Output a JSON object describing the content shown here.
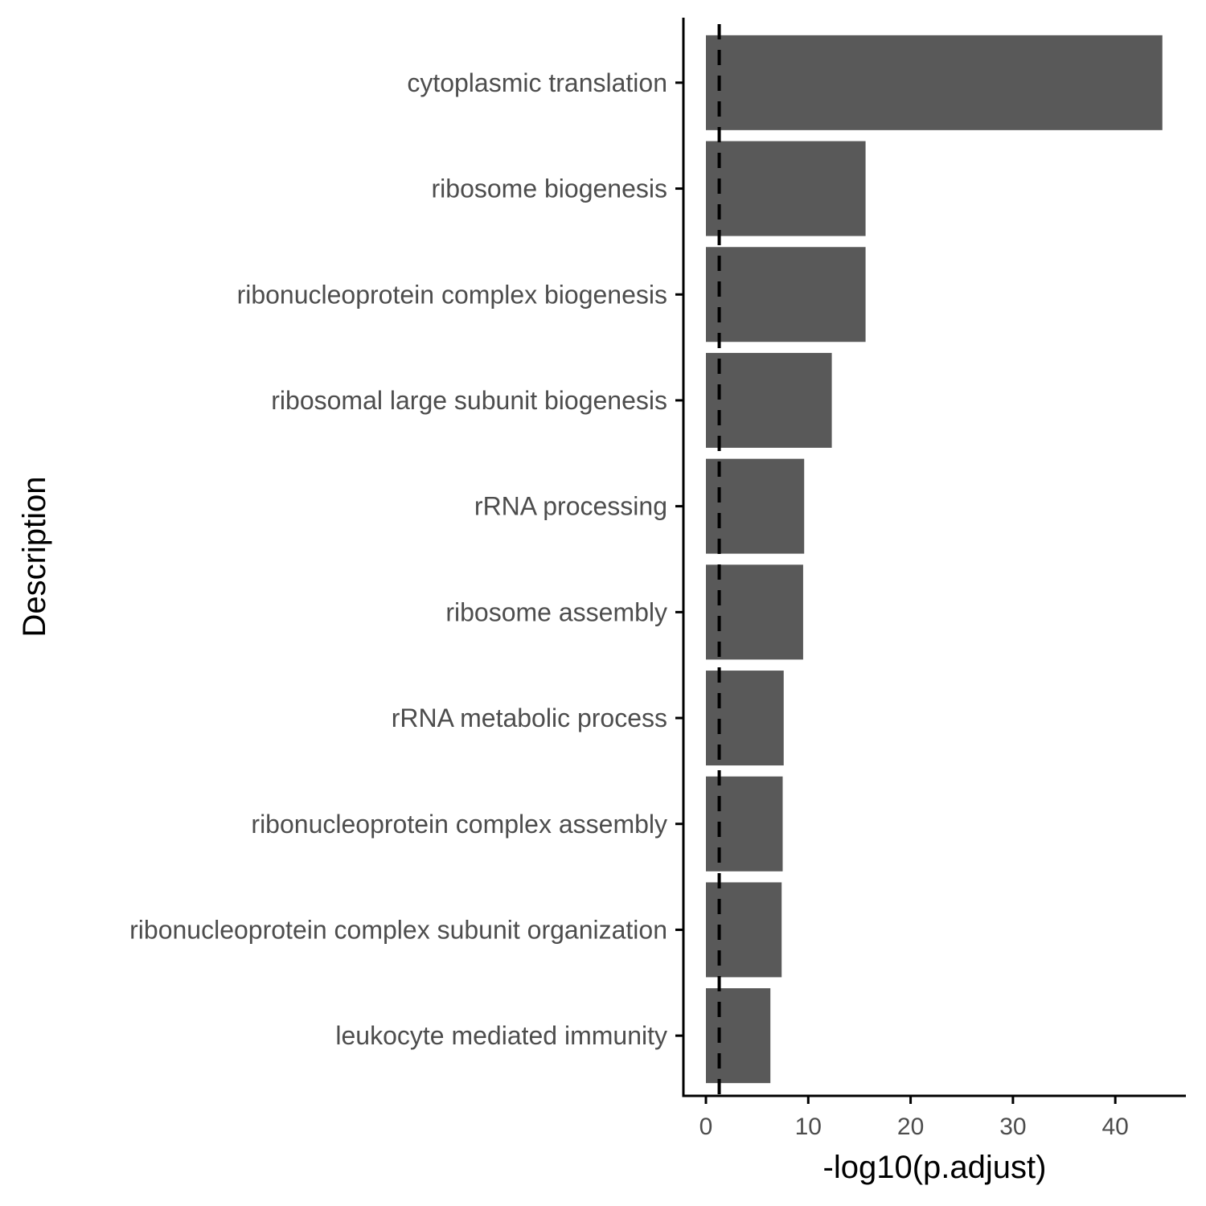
{
  "chart_data": {
    "type": "bar",
    "orientation": "horizontal",
    "xlabel": "-log10(p.adjust)",
    "ylabel": "Description",
    "xlim": [
      -2.2,
      46.9
    ],
    "x_ticks": [
      0,
      10,
      20,
      30,
      40
    ],
    "x_tick_labels": [
      "0",
      "10",
      "20",
      "30",
      "40"
    ],
    "categories": [
      "cytoplasmic translation",
      "ribosome biogenesis",
      "ribonucleoprotein complex biogenesis",
      "ribosomal large subunit biogenesis",
      "rRNA processing",
      "ribosome assembly",
      "rRNA metabolic process",
      "ribonucleoprotein complex assembly",
      "ribonucleoprotein complex subunit organization",
      "leukocyte mediated immunity"
    ],
    "values": [
      44.6,
      15.6,
      15.6,
      12.3,
      9.6,
      9.5,
      7.6,
      7.5,
      7.4,
      6.3
    ],
    "reference_line": {
      "x": 1.3,
      "style": "dashed"
    },
    "grid": false,
    "legend": "none",
    "colors": {
      "bar": "#595959",
      "axis": "#000000",
      "tick_label": "#4d4d4d",
      "reference_line": "#000000"
    }
  }
}
